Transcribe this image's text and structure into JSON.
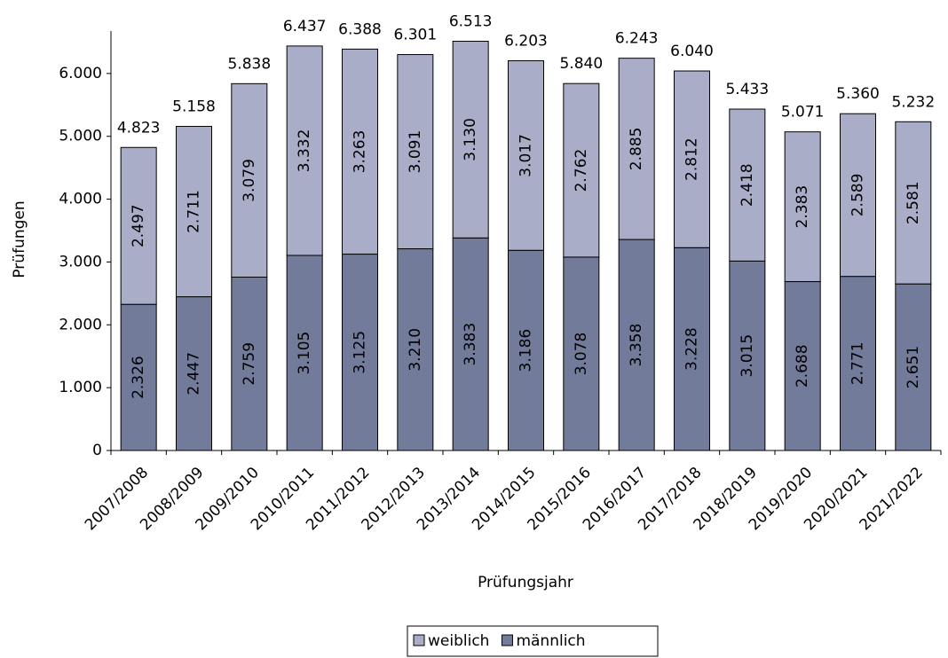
{
  "chart_data": {
    "type": "stacked-bar",
    "x_label": "Prüfungsjahr",
    "y_label": "Prüfungen",
    "categories": [
      "2007/2008",
      "2008/2009",
      "2009/2010",
      "2010/2011",
      "2011/2012",
      "2012/2013",
      "2013/2014",
      "2014/2015",
      "2015/2016",
      "2016/2017",
      "2017/2018",
      "2018/2019",
      "2019/2020",
      "2020/2021",
      "2021/2022"
    ],
    "series": [
      {
        "name": "männlich",
        "color": "#737b9a",
        "values": [
          2326,
          2447,
          2759,
          3105,
          3125,
          3210,
          3383,
          3186,
          3078,
          3358,
          3228,
          3015,
          2688,
          2771,
          2651
        ],
        "value_labels": [
          "2.326",
          "2.447",
          "2.759",
          "3.105",
          "3.125",
          "3.210",
          "3.383",
          "3.186",
          "3.078",
          "3.358",
          "3.228",
          "3.015",
          "2.688",
          "2.771",
          "2.651"
        ]
      },
      {
        "name": "weiblich",
        "color": "#aaadc8",
        "values": [
          2497,
          2711,
          3079,
          3332,
          3263,
          3091,
          3130,
          3017,
          2762,
          2885,
          2812,
          2418,
          2383,
          2589,
          2581
        ],
        "value_labels": [
          "2.497",
          "2.711",
          "3.079",
          "3.332",
          "3.263",
          "3.091",
          "3.130",
          "3.017",
          "2.762",
          "2.885",
          "2.812",
          "2.418",
          "2.383",
          "2.589",
          "2.581"
        ]
      }
    ],
    "totals": {
      "values": [
        4823,
        5158,
        5838,
        6437,
        6388,
        6301,
        6513,
        6203,
        5840,
        6243,
        6040,
        5433,
        5071,
        5360,
        5232
      ],
      "value_labels": [
        "4.823",
        "5.158",
        "5.838",
        "6.437",
        "6.388",
        "6.301",
        "6.513",
        "6.203",
        "5.840",
        "6.243",
        "6.040",
        "5.433",
        "5.071",
        "5.360",
        "5.232"
      ]
    },
    "ylim": [
      0,
      7000
    ],
    "yticks": [
      0,
      {
        "value": 1000,
        "label": "1.000"
      },
      {
        "value": 2000,
        "label": "2.000"
      },
      {
        "value": 3000,
        "label": "3.000"
      },
      {
        "value": 4000,
        "label": "4.000"
      },
      {
        "value": 5000,
        "label": "5.000"
      },
      {
        "value": 6000,
        "label": "6.000"
      }
    ],
    "legend": "bottom"
  }
}
